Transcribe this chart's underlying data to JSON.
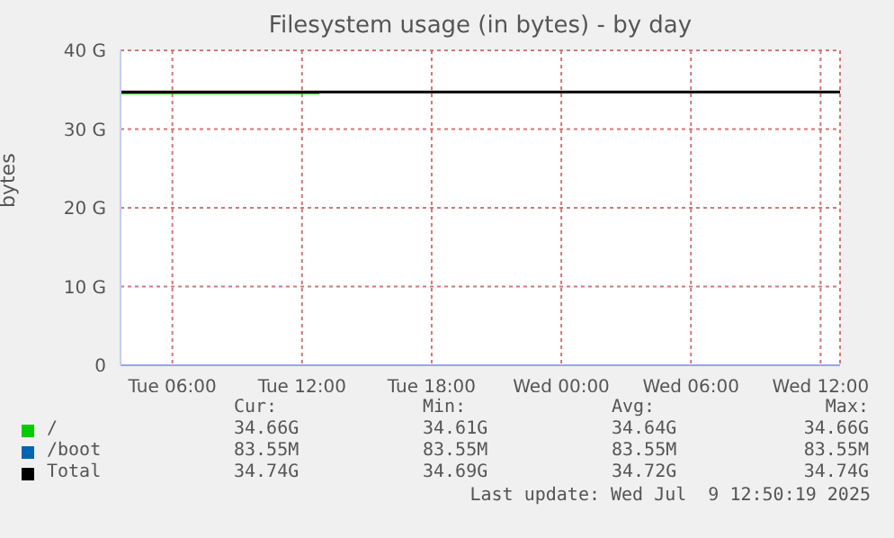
{
  "chart_data": {
    "type": "line",
    "title": "Filesystem usage (in bytes) - by day",
    "ylabel": "bytes",
    "xlim": [
      "2025-07-08T03:36",
      "2025-07-09T12:54"
    ],
    "xticks": [
      {
        "value": "2025-07-08T06:00",
        "label": "Tue 06:00"
      },
      {
        "value": "2025-07-08T12:00",
        "label": "Tue 12:00"
      },
      {
        "value": "2025-07-08T18:00",
        "label": "Tue 18:00"
      },
      {
        "value": "2025-07-09T00:00",
        "label": "Wed 00:00"
      },
      {
        "value": "2025-07-09T06:00",
        "label": "Wed 06:00"
      },
      {
        "value": "2025-07-09T12:00",
        "label": "Wed 12:00"
      }
    ],
    "ylim": [
      0,
      40
    ],
    "yticks": [
      {
        "value": 0,
        "label": "0"
      },
      {
        "value": 10,
        "label": "10 G"
      },
      {
        "value": 20,
        "label": "20 G"
      },
      {
        "value": 30,
        "label": "30 G"
      },
      {
        "value": 40,
        "label": "40 G"
      }
    ],
    "grid": true,
    "legend": "bottom",
    "marker": "none",
    "series": [
      {
        "name": "/",
        "color": "#00cc00",
        "x": [
          "2025-07-08T03:36",
          "2025-07-08T12:48"
        ],
        "values": [
          34.6,
          34.6
        ]
      },
      {
        "name": "/boot",
        "color": "#0066b3"
      },
      {
        "name": "Total",
        "color": "#000000",
        "x": [
          "2025-07-08T03:36",
          "2025-07-09T12:54"
        ],
        "values": [
          34.7,
          34.7
        ]
      }
    ],
    "annotations": [
      "Cur:",
      "Min:",
      "Avg:",
      "Max:",
      "34.66G",
      "34.61G",
      "34.64G",
      "34.66G",
      "83.55M",
      "83.55M",
      "83.55M",
      "83.55M",
      "34.74G",
      "34.69G",
      "34.72G",
      "34.74G",
      "Last update: Wed Jul  9 12:50:19 2025"
    ]
  }
}
